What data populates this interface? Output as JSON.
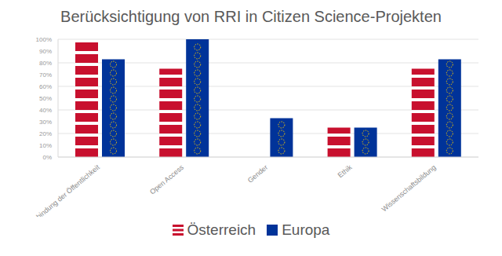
{
  "chart_data": {
    "type": "bar",
    "title": "Berücksichtigung von RRI in Citizen Science-Projekten",
    "categories": [
      "Einbindung der Öffentlichkeit",
      "Open Access",
      "Gender",
      "Ethik",
      "Wissenschaftsbildung"
    ],
    "series": [
      {
        "name": "Österreich",
        "color": "#c8102e",
        "values": [
          100,
          75,
          0,
          25,
          75
        ]
      },
      {
        "name": "Europa",
        "color": "#003399",
        "values": [
          83,
          100,
          33,
          25,
          83
        ]
      }
    ],
    "ylim": [
      0,
      100
    ],
    "yticks": [
      {
        "value": 0,
        "label": "0%"
      },
      {
        "value": 10,
        "label": "10%"
      },
      {
        "value": 20,
        "label": "20%"
      },
      {
        "value": 30,
        "label": "30%"
      },
      {
        "value": 40,
        "label": "40%"
      },
      {
        "value": 50,
        "label": "50%"
      },
      {
        "value": 60,
        "label": "60%"
      },
      {
        "value": 70,
        "label": "70%"
      },
      {
        "value": 80,
        "label": "80%"
      },
      {
        "value": 90,
        "label": "90%"
      },
      {
        "value": 100,
        "label": "100%"
      }
    ],
    "grid": true,
    "legend": "bottom"
  }
}
